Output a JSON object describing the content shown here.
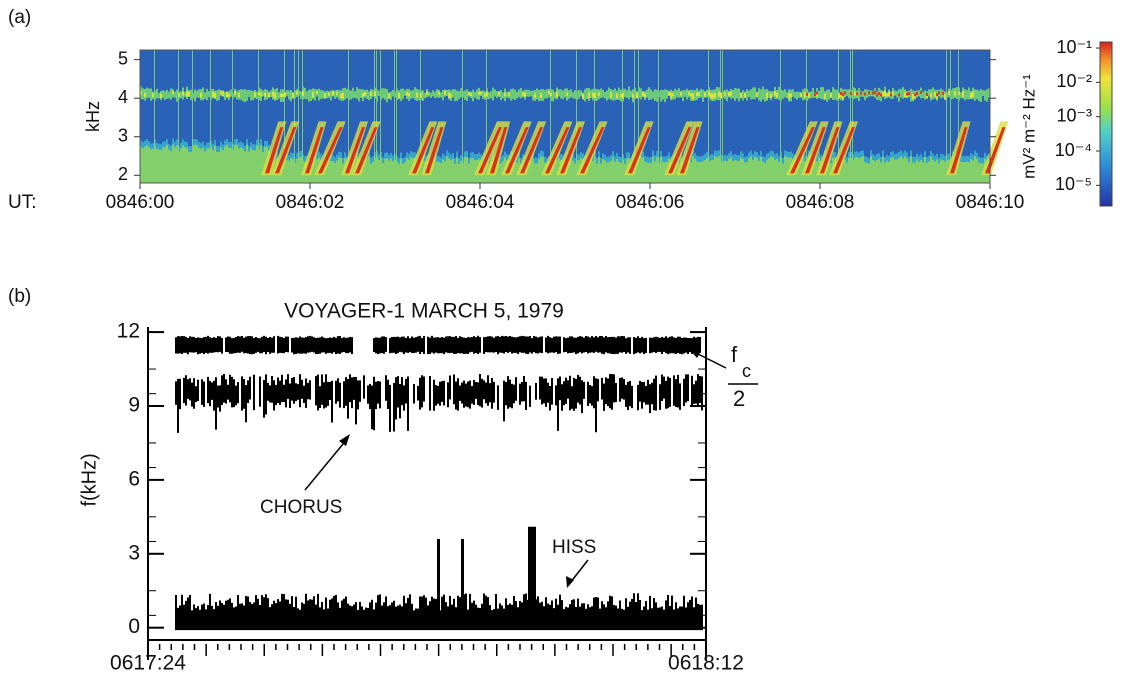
{
  "chart_data": [
    {
      "type": "spectrogram",
      "panel_label": "(a)",
      "ylabel": "kHz",
      "ylim": [
        1.8,
        5.25
      ],
      "yticks": [
        2,
        3,
        4,
        5
      ],
      "x_prefix": "UT:",
      "xlim": [
        0,
        10
      ],
      "xticks": [
        {
          "value": 0,
          "label": "0846:00"
        },
        {
          "value": 2,
          "label": "0846:02"
        },
        {
          "value": 4,
          "label": "0846:04"
        },
        {
          "value": 6,
          "label": "0846:06"
        },
        {
          "value": 8,
          "label": "0846:08"
        },
        {
          "value": 10,
          "label": "0846:10"
        }
      ],
      "colorbar": {
        "label": "mV² m⁻² Hz⁻¹",
        "log_scale": true,
        "lim": [
          2.5e-06,
          0.15
        ],
        "ticks": [
          {
            "value": 0.1,
            "label": "10⁻¹"
          },
          {
            "value": 0.01,
            "label": "10⁻²"
          },
          {
            "value": 0.001,
            "label": "10⁻³"
          },
          {
            "value": 0.0001,
            "label": "10⁻⁴"
          },
          {
            "value": 1e-05,
            "label": "10⁻⁵"
          }
        ]
      }
    },
    {
      "type": "spectrogram-bw",
      "panel_label": "(b)",
      "title": "VOYAGER-1  MARCH 5, 1979",
      "ylabel": "f(kHz)",
      "ylim": [
        -0.5,
        13.1
      ],
      "yticks": [
        0,
        3,
        6,
        9,
        12
      ],
      "xlim": [
        0,
        48
      ],
      "xticks": [
        {
          "value": 0,
          "label": "0617:24"
        },
        {
          "value": 48,
          "label": "0618:12"
        }
      ],
      "annotations": {
        "chorus": "CHORUS",
        "hiss": "HISS",
        "fc_f": "f",
        "fc_sub": "c",
        "fc_den": "2"
      }
    }
  ]
}
